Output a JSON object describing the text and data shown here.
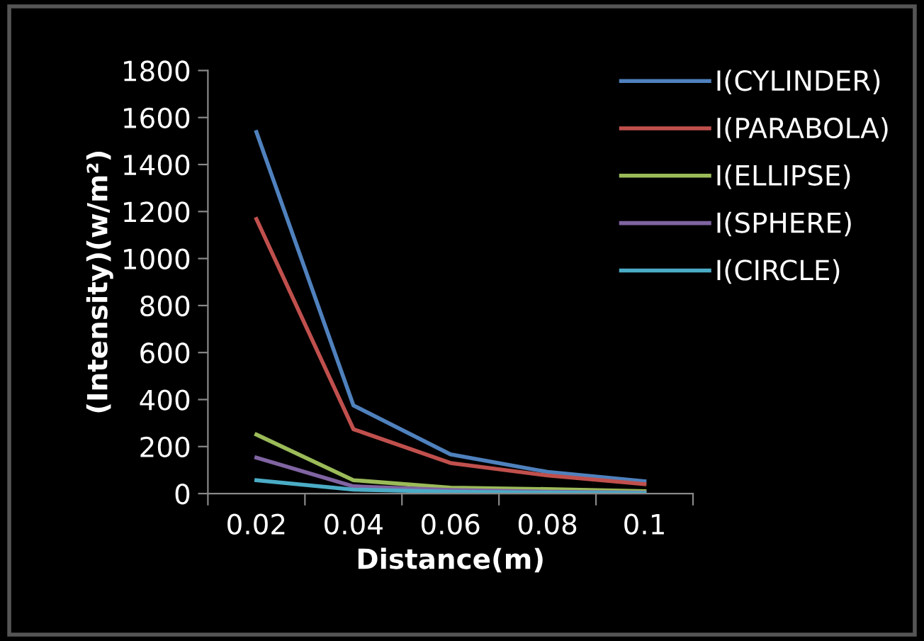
{
  "chart_data": {
    "type": "line",
    "xlabel": "Distance(m)",
    "ylabel": "(Intensity)(w/m²)",
    "categories": [
      "0.02",
      "0.04",
      "0.06",
      "0.08",
      "0.1"
    ],
    "series": [
      {
        "name": "I(CYLINDER)",
        "color": "#4f81bd",
        "values": [
          1538,
          375,
          167,
          92,
          52
        ]
      },
      {
        "name": "I(PARABOLA)",
        "color": "#c0504d",
        "values": [
          1168,
          274,
          130,
          77,
          40
        ]
      },
      {
        "name": "I(ELLIPSE)",
        "color": "#9bbb59",
        "values": [
          251,
          57,
          25,
          19,
          10
        ]
      },
      {
        "name": "I(SPHERE)",
        "color": "#8064a2",
        "values": [
          153,
          31,
          15,
          8,
          4
        ]
      },
      {
        "name": "I(CIRCLE)",
        "color": "#4bacc6",
        "values": [
          57,
          17,
          8,
          4,
          2
        ]
      }
    ],
    "ylim": [
      0,
      1800
    ],
    "yticks": [
      0,
      200,
      400,
      600,
      800,
      1000,
      1200,
      1400,
      1600,
      1800
    ],
    "grid": false,
    "legend": "top right",
    "marker": "none",
    "line_style": "solid"
  }
}
